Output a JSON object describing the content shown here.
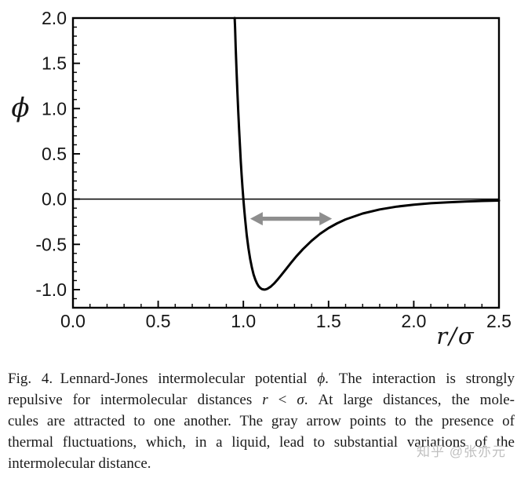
{
  "chart_data": {
    "type": "line",
    "xlabel": "r/σ",
    "ylabel": "ϕ",
    "xlim": [
      0,
      2.5
    ],
    "ylim": [
      -1.2,
      2.0
    ],
    "x_major_ticks": [
      0,
      0.5,
      1.0,
      1.5,
      2.0,
      2.5
    ],
    "x_tick_labels": [
      "0.0",
      "0.5",
      "1.0",
      "1.5",
      "2.0",
      "2.5"
    ],
    "y_major_ticks": [
      -1.0,
      -0.5,
      0.0,
      0.5,
      1.0,
      1.5,
      2.0
    ],
    "y_tick_labels": [
      "-1.0",
      "-0.5",
      "0.0",
      "0.5",
      "1.0",
      "1.5",
      "2.0"
    ],
    "minor_tick_step": 0.1,
    "grid": false,
    "legend": false,
    "zero_line": true,
    "frame_color": "#000000",
    "series": [
      {
        "name": "Lennard-Jones intermolecular potential ϕ",
        "color": "#000000",
        "points": [
          [
            0.949,
            2.0
          ],
          [
            0.951,
            1.902
          ],
          [
            0.955,
            1.677
          ],
          [
            0.96,
            1.418
          ],
          [
            0.965,
            1.181
          ],
          [
            0.97,
            0.963
          ],
          [
            0.975,
            0.764
          ],
          [
            0.98,
            0.582
          ],
          [
            0.985,
            0.416
          ],
          [
            0.99,
            0.264
          ],
          [
            0.995,
            0.126
          ],
          [
            1.0,
            0.0
          ],
          [
            1.005,
            -0.114
          ],
          [
            1.01,
            -0.218
          ],
          [
            1.02,
            -0.398
          ],
          [
            1.03,
            -0.544
          ],
          [
            1.04,
            -0.663
          ],
          [
            1.05,
            -0.758
          ],
          [
            1.06,
            -0.832
          ],
          [
            1.07,
            -0.889
          ],
          [
            1.08,
            -0.932
          ],
          [
            1.09,
            -0.963
          ],
          [
            1.1,
            -0.983
          ],
          [
            1.11,
            -0.995
          ],
          [
            1.122,
            -1.0
          ],
          [
            1.13,
            -0.998
          ],
          [
            1.14,
            -0.992
          ],
          [
            1.16,
            -0.968
          ],
          [
            1.18,
            -0.933
          ],
          [
            1.2,
            -0.891
          ],
          [
            1.22,
            -0.845
          ],
          [
            1.25,
            -0.774
          ],
          [
            1.28,
            -0.703
          ],
          [
            1.31,
            -0.635
          ],
          [
            1.35,
            -0.552
          ],
          [
            1.4,
            -0.461
          ],
          [
            1.45,
            -0.384
          ],
          [
            1.5,
            -0.32
          ],
          [
            1.55,
            -0.268
          ],
          [
            1.6,
            -0.224
          ],
          [
            1.7,
            -0.159
          ],
          [
            1.8,
            -0.114
          ],
          [
            1.9,
            -0.083
          ],
          [
            2.0,
            -0.062
          ],
          [
            2.1,
            -0.046
          ],
          [
            2.2,
            -0.035
          ],
          [
            2.3,
            -0.027
          ],
          [
            2.4,
            -0.021
          ],
          [
            2.5,
            -0.016
          ]
        ]
      }
    ],
    "annotations": [
      {
        "type": "double-arrow",
        "x1": 1.04,
        "x2": 1.52,
        "y": -0.217,
        "color": "#8e8e8e"
      }
    ]
  },
  "caption": {
    "lines": [
      [
        {
          "t": "Fig. 4. Lennard-Jones intermolecular potential ",
          "i": false
        },
        {
          "t": "ϕ",
          "i": true
        },
        {
          "t": ". The interaction is strongly",
          "i": false
        }
      ],
      [
        {
          "t": "repulsive for intermolecular distances ",
          "i": false
        },
        {
          "t": "r",
          "i": true
        },
        {
          "t": " < ",
          "i": false
        },
        {
          "t": "σ",
          "i": true
        },
        {
          "t": ". At large distances, the mole-",
          "i": false
        }
      ],
      [
        {
          "t": "cules are attracted to one another. The gray arrow points to the presence of",
          "i": false
        }
      ],
      [
        {
          "t": "thermal fluctuations, which, in a liquid, lead to substantial variations of the",
          "i": false
        }
      ],
      [
        {
          "t": "intermolecular distance.",
          "i": false
        }
      ]
    ]
  },
  "watermark": {
    "text": "知乎 @张亦元"
  }
}
